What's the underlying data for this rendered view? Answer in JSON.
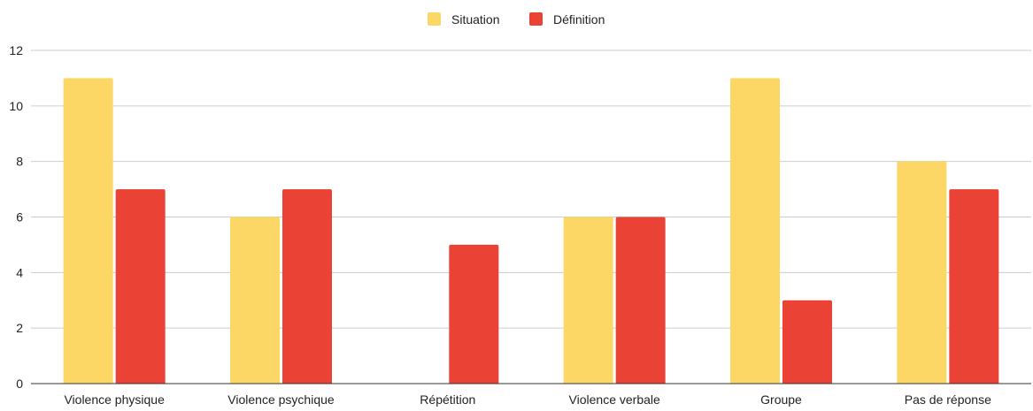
{
  "chart_data": {
    "type": "bar",
    "title": "",
    "xlabel": "",
    "ylabel": "",
    "categories": [
      "Violence physique",
      "Violence psychique",
      "Répétition",
      "Violence verbale",
      "Groupe",
      "Pas de réponse"
    ],
    "series": [
      {
        "name": "Situation",
        "color": "#fdd766",
        "values": [
          11,
          6,
          0,
          6,
          11,
          8
        ]
      },
      {
        "name": "Définition",
        "color": "#ea4335",
        "values": [
          7,
          7,
          5,
          6,
          3,
          7
        ]
      }
    ],
    "ylim": [
      0,
      12
    ],
    "yticks": [
      "0",
      "2",
      "4",
      "6",
      "8",
      "10",
      "12"
    ],
    "grid": true,
    "legend_position": "top-center",
    "colors": {
      "gridline": "#cccccc",
      "axis": "#333333",
      "text": "#222222"
    }
  }
}
